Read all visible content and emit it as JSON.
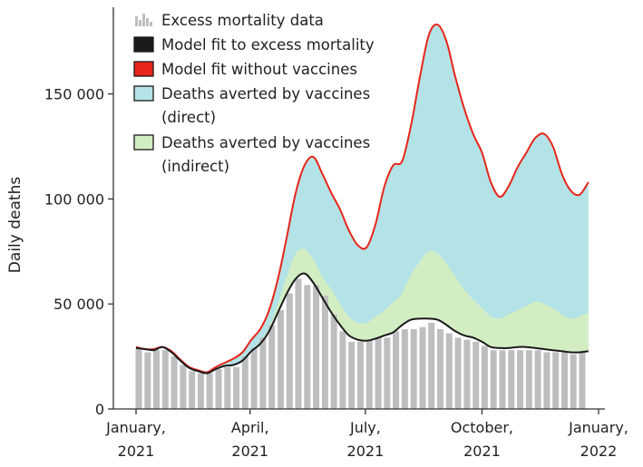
{
  "chart_data": {
    "type": "area",
    "title": "",
    "xlabel": "",
    "ylabel": "Daily deaths",
    "x_range": [
      "2021-01-01",
      "2022-01-01"
    ],
    "ylim": [
      0,
      190000
    ],
    "grid": false,
    "legend_position": "top-left",
    "y_ticks": [
      {
        "value": 0,
        "label": "0"
      },
      {
        "value": 50000,
        "label": "50 000"
      },
      {
        "value": 100000,
        "label": "100 000"
      },
      {
        "value": 150000,
        "label": "150 000"
      }
    ],
    "x_ticks": [
      {
        "date": "2021-01-01",
        "line1": "January,",
        "line2": "2021"
      },
      {
        "date": "2021-04-01",
        "line1": "April,",
        "line2": "2021"
      },
      {
        "date": "2021-07-01",
        "line1": "July,",
        "line2": "2021"
      },
      {
        "date": "2021-10-01",
        "line1": "October,",
        "line2": "2021"
      },
      {
        "date": "2022-01-01",
        "line1": "January,",
        "line2": "2022"
      }
    ],
    "legend": [
      {
        "key": "bars",
        "line1": "Excess mortality data",
        "line2": ""
      },
      {
        "key": "fit",
        "line1": "Model fit to excess mortality",
        "line2": ""
      },
      {
        "key": "novax",
        "line1": "Model fit without vaccines",
        "line2": ""
      },
      {
        "key": "direct",
        "line1": "Deaths averted by vaccines",
        "line2": "(direct)"
      },
      {
        "key": "indirect",
        "line1": "Deaths averted by vaccines",
        "line2": "(indirect)"
      }
    ],
    "colors": {
      "bars": "#bcbec0",
      "fit": "#1a1a1a",
      "novax": "#e8251b",
      "direct": "#b3e3e6",
      "indirect": "#d3edc3",
      "axis": "#333333"
    },
    "bars_weekly": {
      "start_date": "2021-01-01",
      "interval_days": 7,
      "values": [
        29000,
        27000,
        28000,
        28000,
        25000,
        21000,
        18000,
        17000,
        17000,
        19000,
        20000,
        20000,
        25000,
        29000,
        34000,
        40000,
        47000,
        55000,
        62000,
        59000,
        59000,
        54000,
        45000,
        37000,
        32000,
        32000,
        33000,
        34000,
        34000,
        37000,
        38000,
        38000,
        39000,
        41000,
        38000,
        36000,
        34000,
        33000,
        32000,
        30000,
        28000,
        28000,
        28000,
        28000,
        28000,
        28000,
        27000,
        27000,
        27000,
        26000,
        27000
      ]
    },
    "series": [
      {
        "name": "Model fit to excess mortality",
        "key": "fit",
        "points": [
          [
            "2021-01-01",
            29000
          ],
          [
            "2021-01-08",
            28500
          ],
          [
            "2021-01-15",
            28000
          ],
          [
            "2021-01-22",
            29500
          ],
          [
            "2021-01-29",
            27000
          ],
          [
            "2021-02-05",
            23000
          ],
          [
            "2021-02-12",
            19500
          ],
          [
            "2021-02-19",
            18000
          ],
          [
            "2021-02-26",
            17000
          ],
          [
            "2021-03-05",
            19000
          ],
          [
            "2021-03-12",
            20500
          ],
          [
            "2021-03-19",
            21000
          ],
          [
            "2021-03-26",
            23000
          ],
          [
            "2021-04-02",
            27500
          ],
          [
            "2021-04-09",
            31000
          ],
          [
            "2021-04-16",
            37000
          ],
          [
            "2021-04-23",
            46000
          ],
          [
            "2021-04-30",
            55000
          ],
          [
            "2021-05-07",
            62000
          ],
          [
            "2021-05-14",
            64500
          ],
          [
            "2021-05-21",
            60000
          ],
          [
            "2021-05-28",
            53000
          ],
          [
            "2021-06-04",
            46000
          ],
          [
            "2021-06-11",
            40000
          ],
          [
            "2021-06-18",
            35000
          ],
          [
            "2021-06-25",
            33000
          ],
          [
            "2021-07-02",
            32500
          ],
          [
            "2021-07-09",
            33500
          ],
          [
            "2021-07-16",
            35000
          ],
          [
            "2021-07-23",
            36500
          ],
          [
            "2021-07-30",
            40000
          ],
          [
            "2021-08-06",
            42500
          ],
          [
            "2021-08-13",
            43000
          ],
          [
            "2021-08-20",
            43000
          ],
          [
            "2021-08-27",
            42500
          ],
          [
            "2021-09-03",
            40000
          ],
          [
            "2021-09-10",
            37000
          ],
          [
            "2021-09-17",
            35000
          ],
          [
            "2021-09-24",
            34000
          ],
          [
            "2021-10-01",
            32000
          ],
          [
            "2021-10-08",
            29500
          ],
          [
            "2021-10-15",
            29000
          ],
          [
            "2021-10-22",
            29000
          ],
          [
            "2021-10-29",
            29500
          ],
          [
            "2021-11-05",
            29500
          ],
          [
            "2021-11-12",
            29000
          ],
          [
            "2021-11-19",
            28500
          ],
          [
            "2021-11-26",
            28000
          ],
          [
            "2021-12-03",
            27500
          ],
          [
            "2021-12-10",
            27000
          ],
          [
            "2021-12-17",
            27000
          ],
          [
            "2021-12-24",
            27500
          ]
        ]
      },
      {
        "name": "Model fit without vaccines",
        "key": "novax",
        "points": [
          [
            "2021-01-01",
            29500
          ],
          [
            "2021-01-08",
            28500
          ],
          [
            "2021-01-15",
            28500
          ],
          [
            "2021-01-22",
            29500
          ],
          [
            "2021-01-29",
            27500
          ],
          [
            "2021-02-05",
            23500
          ],
          [
            "2021-02-12",
            20000
          ],
          [
            "2021-02-19",
            18500
          ],
          [
            "2021-02-26",
            17500
          ],
          [
            "2021-03-05",
            20000
          ],
          [
            "2021-03-12",
            22000
          ],
          [
            "2021-03-19",
            24000
          ],
          [
            "2021-03-26",
            27000
          ],
          [
            "2021-04-02",
            33000
          ],
          [
            "2021-04-09",
            38000
          ],
          [
            "2021-04-16",
            47000
          ],
          [
            "2021-04-23",
            62000
          ],
          [
            "2021-04-30",
            82000
          ],
          [
            "2021-05-07",
            103000
          ],
          [
            "2021-05-14",
            116000
          ],
          [
            "2021-05-21",
            120000
          ],
          [
            "2021-05-28",
            112000
          ],
          [
            "2021-06-04",
            103000
          ],
          [
            "2021-06-11",
            95000
          ],
          [
            "2021-06-18",
            85000
          ],
          [
            "2021-06-25",
            78000
          ],
          [
            "2021-07-02",
            77000
          ],
          [
            "2021-07-09",
            88000
          ],
          [
            "2021-07-16",
            106000
          ],
          [
            "2021-07-23",
            116000
          ],
          [
            "2021-07-30",
            118000
          ],
          [
            "2021-08-06",
            135000
          ],
          [
            "2021-08-13",
            158000
          ],
          [
            "2021-08-20",
            178000
          ],
          [
            "2021-08-27",
            183000
          ],
          [
            "2021-09-03",
            175000
          ],
          [
            "2021-09-10",
            158000
          ],
          [
            "2021-09-17",
            143000
          ],
          [
            "2021-09-24",
            131000
          ],
          [
            "2021-10-01",
            122000
          ],
          [
            "2021-10-08",
            108000
          ],
          [
            "2021-10-15",
            101000
          ],
          [
            "2021-10-22",
            106000
          ],
          [
            "2021-10-29",
            115000
          ],
          [
            "2021-11-05",
            122000
          ],
          [
            "2021-11-12",
            129000
          ],
          [
            "2021-11-19",
            131000
          ],
          [
            "2021-11-26",
            125000
          ],
          [
            "2021-12-03",
            112000
          ],
          [
            "2021-12-10",
            104000
          ],
          [
            "2021-12-17",
            102000
          ],
          [
            "2021-12-24",
            108000
          ]
        ]
      },
      {
        "name": "Deaths averted by vaccines (indirect)",
        "key": "indirect_upper",
        "points": [
          [
            "2021-03-26",
            23000
          ],
          [
            "2021-04-02",
            28000
          ],
          [
            "2021-04-09",
            32000
          ],
          [
            "2021-04-16",
            39000
          ],
          [
            "2021-04-23",
            50000
          ],
          [
            "2021-04-30",
            63000
          ],
          [
            "2021-05-07",
            74000
          ],
          [
            "2021-05-14",
            76000
          ],
          [
            "2021-05-21",
            71000
          ],
          [
            "2021-05-28",
            63000
          ],
          [
            "2021-06-04",
            57000
          ],
          [
            "2021-06-11",
            50000
          ],
          [
            "2021-06-18",
            44000
          ],
          [
            "2021-06-25",
            41000
          ],
          [
            "2021-07-02",
            41000
          ],
          [
            "2021-07-09",
            44000
          ],
          [
            "2021-07-16",
            47000
          ],
          [
            "2021-07-23",
            51000
          ],
          [
            "2021-07-30",
            55000
          ],
          [
            "2021-08-06",
            64000
          ],
          [
            "2021-08-13",
            70000
          ],
          [
            "2021-08-20",
            75000
          ],
          [
            "2021-08-27",
            74000
          ],
          [
            "2021-09-03",
            69000
          ],
          [
            "2021-09-10",
            63000
          ],
          [
            "2021-09-17",
            57000
          ],
          [
            "2021-09-24",
            52000
          ],
          [
            "2021-10-01",
            48000
          ],
          [
            "2021-10-08",
            44000
          ],
          [
            "2021-10-15",
            43000
          ],
          [
            "2021-10-22",
            45000
          ],
          [
            "2021-10-29",
            47000
          ],
          [
            "2021-11-05",
            49000
          ],
          [
            "2021-11-12",
            51000
          ],
          [
            "2021-11-19",
            50000
          ],
          [
            "2021-11-26",
            48000
          ],
          [
            "2021-12-03",
            45000
          ],
          [
            "2021-12-10",
            43000
          ],
          [
            "2021-12-17",
            44000
          ],
          [
            "2021-12-24",
            46000
          ]
        ]
      }
    ]
  }
}
